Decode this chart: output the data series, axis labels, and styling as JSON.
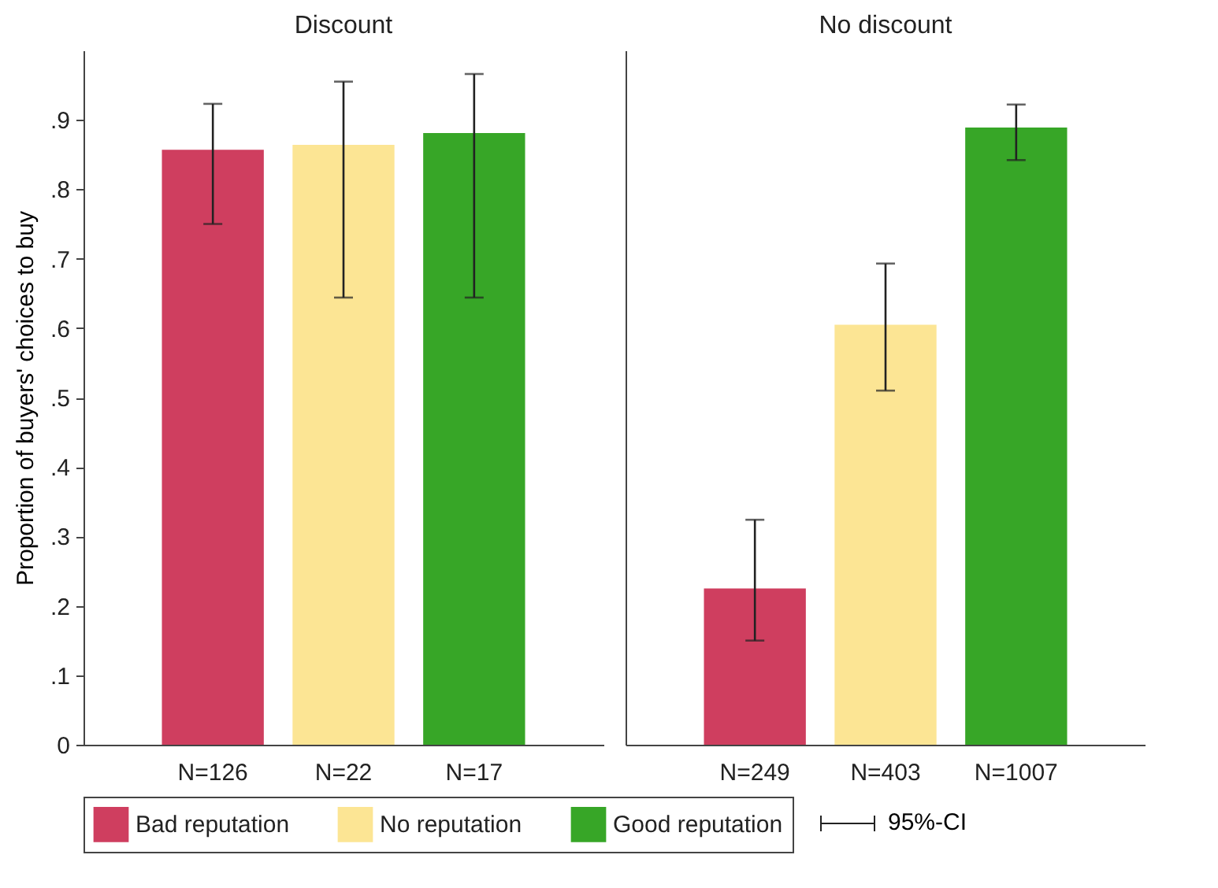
{
  "chart_data": [
    {
      "type": "bar",
      "title": "Discount",
      "ylabel": "Proportion of buyers' choices to buy",
      "categories": [
        "N=126",
        "N=22",
        "N=17"
      ],
      "series": [
        {
          "name": "Bad reputation",
          "color": "#cf3e5f",
          "values": [
            0.857,
            null,
            null
          ],
          "errors": [
            [
              0.75,
              0.923
            ],
            null,
            null
          ]
        },
        {
          "name": "No reputation",
          "color": "#fce594",
          "values": [
            null,
            0.864,
            null
          ],
          "errors": [
            null,
            [
              0.644,
              0.955
            ],
            null
          ]
        },
        {
          "name": "Good reputation",
          "color": "#37a627",
          "values": [
            null,
            null,
            0.881
          ],
          "errors": [
            null,
            null,
            [
              0.644,
              0.966
            ]
          ]
        }
      ],
      "ylim": [
        0,
        1
      ],
      "yticks": [
        0,
        {
          "value": 0.1,
          "label": ".1"
        },
        {
          "value": 0.2,
          "label": ".2"
        },
        {
          "value": 0.3,
          "label": ".3"
        },
        {
          "value": 0.4,
          "label": ".4"
        },
        {
          "value": 0.5,
          "label": ".5"
        },
        {
          "value": 0.6,
          "label": ".6"
        },
        {
          "value": 0.7,
          "label": ".7"
        },
        {
          "value": 0.8,
          "label": ".8"
        },
        {
          "value": 0.9,
          "label": ".9"
        }
      ],
      "legend": "bottom"
    },
    {
      "type": "bar",
      "title": "No discount",
      "categories": [
        "N=249",
        "N=403",
        "N=1007"
      ],
      "series": [
        {
          "name": "Bad reputation",
          "color": "#cf3e5f",
          "values": [
            0.225,
            null,
            null
          ],
          "errors": [
            [
              0.15,
              0.324
            ],
            null,
            null
          ]
        },
        {
          "name": "No reputation",
          "color": "#fce594",
          "values": [
            null,
            0.605,
            null
          ],
          "errors": [
            null,
            [
              0.51,
              0.693
            ],
            null
          ]
        },
        {
          "name": "Good reputation",
          "color": "#37a627",
          "values": [
            null,
            null,
            0.889
          ],
          "errors": [
            null,
            null,
            [
              0.842,
              0.922
            ]
          ]
        }
      ],
      "ylim": [
        0,
        1
      ],
      "tick_labels": "x",
      "legend": "bottom",
      "annotations": [
        "95%-CI"
      ]
    }
  ]
}
